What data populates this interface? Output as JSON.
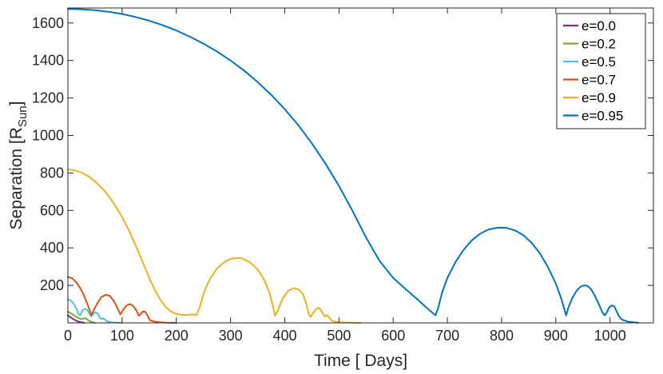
{
  "chart_data": {
    "type": "line",
    "xlabel": "Time [ Days]",
    "ylabel": {
      "main": "Separation [R",
      "sub": "Sun",
      "close": "]"
    },
    "xlim": [
      0,
      1080
    ],
    "ylim": [
      0,
      1680
    ],
    "xticks": [
      0,
      100,
      200,
      300,
      400,
      500,
      600,
      700,
      800,
      900,
      1000
    ],
    "yticks": [
      200,
      400,
      600,
      800,
      1000,
      1200,
      1400,
      1600
    ],
    "grid": false,
    "legend_position": "top-right",
    "series": [
      {
        "name": "e=0.0",
        "color": "#7E2F8E",
        "points": [
          [
            0,
            40
          ],
          [
            5,
            30
          ],
          [
            10,
            20
          ],
          [
            15,
            12
          ],
          [
            20,
            6
          ],
          [
            25,
            3
          ],
          [
            30,
            0
          ]
        ]
      },
      {
        "name": "e=0.2",
        "color": "#77AC30",
        "points": [
          [
            0,
            60
          ],
          [
            6,
            50
          ],
          [
            12,
            38
          ],
          [
            18,
            28
          ],
          [
            22,
            22
          ],
          [
            25,
            20
          ],
          [
            28,
            22
          ],
          [
            32,
            25
          ],
          [
            36,
            18
          ],
          [
            40,
            10
          ],
          [
            45,
            4
          ],
          [
            50,
            0
          ]
        ]
      },
      {
        "name": "e=0.5",
        "color": "#4DBEEE",
        "points": [
          [
            0,
            125
          ],
          [
            5,
            120
          ],
          [
            10,
            105
          ],
          [
            15,
            80
          ],
          [
            19,
            50
          ],
          [
            22,
            40
          ],
          [
            25,
            55
          ],
          [
            28,
            70
          ],
          [
            32,
            75
          ],
          [
            36,
            68
          ],
          [
            40,
            48
          ],
          [
            43,
            35
          ],
          [
            46,
            45
          ],
          [
            50,
            58
          ],
          [
            54,
            52
          ],
          [
            58,
            32
          ],
          [
            62,
            20
          ],
          [
            65,
            25
          ],
          [
            68,
            18
          ],
          [
            72,
            8
          ],
          [
            78,
            4
          ],
          [
            85,
            2
          ],
          [
            100,
            0
          ]
        ]
      },
      {
        "name": "e=0.7",
        "color": "#D95319",
        "points": [
          [
            0,
            245
          ],
          [
            8,
            238
          ],
          [
            16,
            215
          ],
          [
            24,
            180
          ],
          [
            32,
            130
          ],
          [
            38,
            85
          ],
          [
            43,
            40
          ],
          [
            48,
            70
          ],
          [
            55,
            108
          ],
          [
            62,
            138
          ],
          [
            70,
            150
          ],
          [
            78,
            143
          ],
          [
            86,
            110
          ],
          [
            92,
            75
          ],
          [
            97,
            45
          ],
          [
            102,
            70
          ],
          [
            108,
            92
          ],
          [
            114,
            100
          ],
          [
            120,
            92
          ],
          [
            126,
            68
          ],
          [
            131,
            38
          ],
          [
            135,
            50
          ],
          [
            139,
            62
          ],
          [
            143,
            58
          ],
          [
            147,
            38
          ],
          [
            151,
            15
          ],
          [
            156,
            10
          ],
          [
            162,
            5
          ],
          [
            170,
            3
          ],
          [
            180,
            1
          ],
          [
            200,
            0
          ]
        ]
      },
      {
        "name": "e=0.9",
        "color": "#EDB120",
        "points": [
          [
            0,
            818
          ],
          [
            10,
            815
          ],
          [
            20,
            808
          ],
          [
            30,
            795
          ],
          [
            40,
            778
          ],
          [
            50,
            755
          ],
          [
            60,
            728
          ],
          [
            70,
            695
          ],
          [
            80,
            657
          ],
          [
            90,
            613
          ],
          [
            100,
            564
          ],
          [
            110,
            508
          ],
          [
            120,
            447
          ],
          [
            130,
            380
          ],
          [
            140,
            310
          ],
          [
            150,
            240
          ],
          [
            160,
            178
          ],
          [
            170,
            125
          ],
          [
            180,
            85
          ],
          [
            190,
            60
          ],
          [
            200,
            48
          ],
          [
            210,
            44
          ],
          [
            220,
            42
          ],
          [
            230,
            45
          ],
          [
            237,
            42
          ],
          [
            244,
            90
          ],
          [
            252,
            170
          ],
          [
            262,
            235
          ],
          [
            275,
            290
          ],
          [
            290,
            328
          ],
          [
            305,
            345
          ],
          [
            320,
            345
          ],
          [
            335,
            325
          ],
          [
            350,
            285
          ],
          [
            362,
            230
          ],
          [
            372,
            160
          ],
          [
            378,
            90
          ],
          [
            382,
            38
          ],
          [
            388,
            70
          ],
          [
            396,
            130
          ],
          [
            406,
            170
          ],
          [
            416,
            185
          ],
          [
            426,
            178
          ],
          [
            434,
            150
          ],
          [
            440,
            100
          ],
          [
            444,
            50
          ],
          [
            448,
            32
          ],
          [
            452,
            52
          ],
          [
            458,
            74
          ],
          [
            462,
            80
          ],
          [
            466,
            72
          ],
          [
            470,
            52
          ],
          [
            474,
            35
          ],
          [
            478,
            40
          ],
          [
            482,
            28
          ],
          [
            488,
            10
          ],
          [
            495,
            5
          ],
          [
            505,
            2
          ],
          [
            540,
            0
          ]
        ]
      },
      {
        "name": "e=0.95",
        "color": "#0072BD",
        "points": [
          [
            0,
            1675
          ],
          [
            25,
            1673
          ],
          [
            50,
            1668
          ],
          [
            75,
            1660
          ],
          [
            100,
            1648
          ],
          [
            125,
            1632
          ],
          [
            150,
            1612
          ],
          [
            175,
            1588
          ],
          [
            200,
            1560
          ],
          [
            225,
            1527
          ],
          [
            250,
            1490
          ],
          [
            275,
            1448
          ],
          [
            300,
            1400
          ],
          [
            325,
            1346
          ],
          [
            350,
            1285
          ],
          [
            375,
            1217
          ],
          [
            400,
            1140
          ],
          [
            425,
            1055
          ],
          [
            450,
            958
          ],
          [
            475,
            850
          ],
          [
            500,
            730
          ],
          [
            525,
            598
          ],
          [
            550,
            455
          ],
          [
            575,
            330
          ],
          [
            600,
            240
          ],
          [
            625,
            175
          ],
          [
            645,
            125
          ],
          [
            660,
            85
          ],
          [
            672,
            55
          ],
          [
            678,
            40
          ],
          [
            683,
            80
          ],
          [
            690,
            160
          ],
          [
            700,
            240
          ],
          [
            715,
            325
          ],
          [
            730,
            390
          ],
          [
            745,
            440
          ],
          [
            760,
            475
          ],
          [
            775,
            497
          ],
          [
            790,
            507
          ],
          [
            800,
            508
          ],
          [
            810,
            506
          ],
          [
            825,
            493
          ],
          [
            840,
            468
          ],
          [
            855,
            428
          ],
          [
            870,
            373
          ],
          [
            885,
            300
          ],
          [
            900,
            210
          ],
          [
            910,
            130
          ],
          [
            916,
            70
          ],
          [
            919,
            40
          ],
          [
            923,
            80
          ],
          [
            930,
            130
          ],
          [
            938,
            170
          ],
          [
            945,
            192
          ],
          [
            952,
            200
          ],
          [
            958,
            198
          ],
          [
            965,
            180
          ],
          [
            972,
            145
          ],
          [
            980,
            95
          ],
          [
            986,
            55
          ],
          [
            990,
            40
          ],
          [
            994,
            55
          ],
          [
            998,
            80
          ],
          [
            1003,
            93
          ],
          [
            1008,
            88
          ],
          [
            1012,
            62
          ],
          [
            1016,
            38
          ],
          [
            1020,
            22
          ],
          [
            1024,
            15
          ],
          [
            1028,
            12
          ],
          [
            1033,
            6
          ],
          [
            1040,
            4
          ],
          [
            1048,
            2
          ],
          [
            1052,
            0
          ]
        ]
      }
    ]
  }
}
